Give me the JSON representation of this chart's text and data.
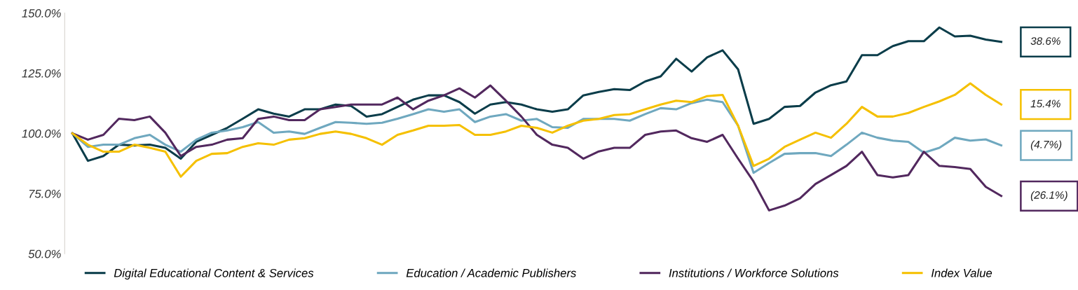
{
  "chart_data": {
    "type": "line",
    "categories": [
      null,
      null,
      null,
      null,
      null,
      null,
      null,
      null,
      null,
      null,
      null,
      null,
      null,
      null,
      null,
      null,
      null,
      null,
      null,
      null,
      null,
      null,
      null,
      null,
      null,
      null,
      null,
      null,
      null,
      null,
      null,
      null,
      null,
      null,
      null,
      null,
      null,
      null,
      null,
      null,
      null,
      null,
      null,
      null,
      null,
      null,
      null,
      null,
      null,
      null,
      null,
      null,
      null,
      null,
      null,
      null,
      null,
      null,
      null,
      null,
      null
    ],
    "ylim": [
      50,
      150
    ],
    "yticks": [
      {
        "value": 50,
        "label": "50.0%"
      },
      {
        "value": 75,
        "label": "75.0%"
      },
      {
        "value": 100,
        "label": "100.0%"
      },
      {
        "value": 125,
        "label": "125.0%"
      },
      {
        "value": 150,
        "label": "150.0%"
      }
    ],
    "annotations": [
      "38.6%",
      "15.4%",
      "(4.7%)",
      "(26.1%)"
    ],
    "tick_labels": "y",
    "grid": false,
    "legend": "bottom",
    "marker": "none",
    "line_style": "solid",
    "series": [
      {
        "name": "Digital Educational Content & Services",
        "color": "#0b3d4a",
        "values": [
          100,
          88.6,
          90.6,
          95.3,
          95,
          95.3,
          94,
          89.5,
          96.5,
          99.4,
          102.3,
          106.1,
          110,
          108.2,
          107,
          110,
          110,
          112,
          111.4,
          107,
          108,
          111,
          114,
          115.8,
          115.8,
          113,
          108.2,
          112,
          113,
          112,
          110,
          109,
          110,
          115.8,
          117.2,
          118.4,
          118,
          121.6,
          123.7,
          131,
          125.7,
          131.6,
          134.5,
          126.6,
          104,
          106,
          111,
          111.4,
          117,
          120,
          121.6,
          132.5,
          132.5,
          136.3,
          138.3,
          138.3,
          144,
          140.3,
          140.6,
          139,
          138
        ]
      },
      {
        "name": "Education / Academic Publishers",
        "color": "#6fa8bf",
        "values": [
          100,
          94.4,
          95.3,
          95.3,
          98,
          99.4,
          95.3,
          92.4,
          97.4,
          100.3,
          101.2,
          102.6,
          104.7,
          100.3,
          100.8,
          99.8,
          102.3,
          104.7,
          104.4,
          104,
          104.4,
          106.1,
          108,
          110,
          109,
          110,
          104.7,
          107,
          108,
          105.3,
          106,
          102.6,
          102.3,
          106,
          106,
          106,
          105.3,
          108,
          110.5,
          110,
          112.6,
          114,
          113,
          103.2,
          83.6,
          87.7,
          91.5,
          91.8,
          91.8,
          90.6,
          95.3,
          100.3,
          98.2,
          97,
          96.5,
          92,
          94,
          98.2,
          97,
          97.5,
          95
        ]
      },
      {
        "name": "Institutions / Workforce Solutions",
        "color": "#52285e",
        "values": [
          100,
          97.4,
          99.4,
          106.1,
          105.5,
          107,
          100.3,
          90.6,
          94.4,
          95.3,
          97.4,
          98,
          106,
          107,
          105.5,
          105.5,
          110,
          111,
          112,
          112,
          112,
          114.9,
          110,
          113.6,
          115.8,
          118.7,
          114.9,
          119.9,
          113.6,
          107,
          99.4,
          95.3,
          94,
          89.5,
          92.5,
          94,
          94,
          99.4,
          100.8,
          101.2,
          98,
          96.5,
          99.4,
          89.5,
          80,
          68,
          70,
          73,
          79,
          82.7,
          86.5,
          92.4,
          82.7,
          81.7,
          82.7,
          92.4,
          86.5,
          86,
          85.2,
          77.8,
          74
        ]
      },
      {
        "name": "Index Value",
        "color": "#f5c000",
        "values": [
          100,
          95.3,
          92.4,
          92.4,
          95.3,
          94,
          92.4,
          82,
          88.6,
          91.5,
          91.8,
          94.4,
          95.9,
          95.3,
          97.4,
          98,
          99.8,
          100.8,
          99.8,
          98,
          95.3,
          99.4,
          101.2,
          103.2,
          103.2,
          103.5,
          99.4,
          99.4,
          100.8,
          103.2,
          102.3,
          100.3,
          103.2,
          105.3,
          106,
          107.6,
          108,
          110,
          112,
          113.6,
          113,
          115.5,
          116,
          103.2,
          86.5,
          89.5,
          94.4,
          97.4,
          100.3,
          98.2,
          104,
          111,
          107,
          107,
          108.5,
          111,
          113.3,
          116,
          120.8,
          116,
          112
        ]
      }
    ]
  }
}
